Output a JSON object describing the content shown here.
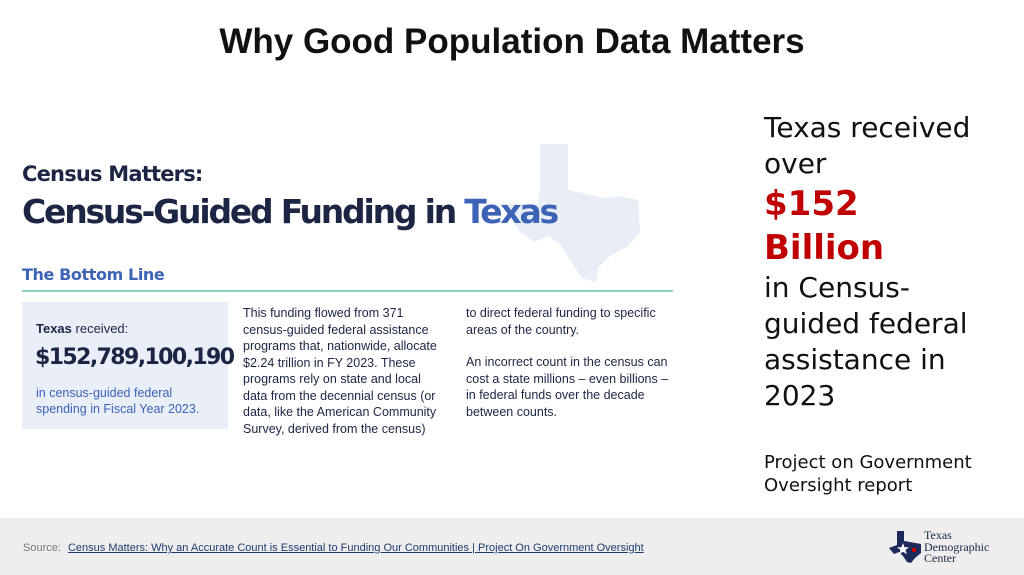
{
  "slide": {
    "title": "Why Good Population Data Matters"
  },
  "graphic": {
    "kicker": "Census Matters:",
    "headline_main": "Census-Guided Funding in ",
    "headline_accent": "Texas",
    "section_label": "The Bottom Line",
    "stat": {
      "label_bold": "Texas",
      "label_rest": " received:",
      "amount": "$152,789,100,190",
      "description": "in census-guided federal spending in Fiscal Year 2023."
    },
    "column_a": "This funding flowed from 371 census-guided federal assistance programs that, nationwide, allocate $2.24 trillion in FY 2023. These programs rely on state and local data from the decennial census (or data, like the American Community Survey, derived from the census)",
    "column_b_p1": "to direct federal funding to specific areas of the country.",
    "column_b_p2": "An incorrect count in the census can cost a state millions – even billions – in federal funds over the decade between counts.",
    "colors": {
      "navy": "#1d2545",
      "blue": "#3c63b5",
      "rule": "#8cd3b4",
      "box": "#e9eef8",
      "map": "#e8edf6"
    }
  },
  "summary": {
    "line1": "Texas received",
    "line2": "over",
    "amount_line1": "$152",
    "amount_line2": "Billion",
    "line3": "in Census-",
    "line4": "guided federal",
    "line5": "assistance in",
    "line6": "2023",
    "report_line1": "Project on Government",
    "report_line2": "Oversight report",
    "accent_color": "#c00000"
  },
  "footer": {
    "source_label": "Source:",
    "source_link": "Census Matters: Why an Accurate Count is Essential to Funding Our Communities | Project On Government Oversight",
    "logo_line1": "Texas",
    "logo_line2": "Demographic",
    "logo_line3": "Center",
    "logo_icon": "texas-star-map-icon"
  }
}
